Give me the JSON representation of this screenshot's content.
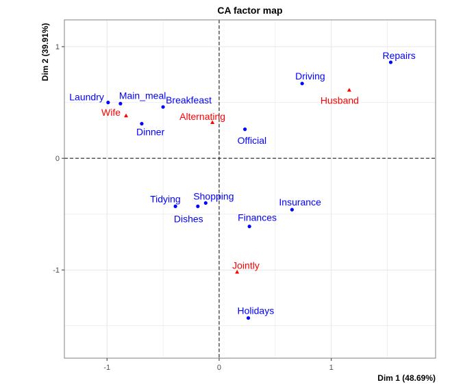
{
  "chart_data": {
    "type": "scatter",
    "title": "CA factor map",
    "xlabel": "Dim 1 (48.69%)",
    "ylabel": "Dim 2 (39.91%)",
    "xlim": [
      -1.38,
      1.93
    ],
    "ylim": [
      -1.79,
      1.24
    ],
    "x_ticks": [
      -1,
      0,
      1
    ],
    "y_ticks": [
      -1,
      0,
      1
    ],
    "x_tick_labels": [
      "-1",
      "0",
      "1"
    ],
    "y_tick_labels": [
      "-1",
      "0",
      "1"
    ],
    "grid": true,
    "legend": "none",
    "colors": {
      "rows": "#0000ff",
      "cols": "#ff0000",
      "grid": "#e6e6e6",
      "frame": "#808080"
    },
    "rows": [
      {
        "label": "Laundry",
        "x": -0.99,
        "y": 0.5
      },
      {
        "label": "Main_meal",
        "x": -0.88,
        "y": 0.49
      },
      {
        "label": "Dinner",
        "x": -0.69,
        "y": 0.31
      },
      {
        "label": "Breakfeast",
        "x": -0.5,
        "y": 0.46
      },
      {
        "label": "Tidying",
        "x": -0.39,
        "y": -0.43
      },
      {
        "label": "Dishes",
        "x": -0.19,
        "y": -0.43
      },
      {
        "label": "Shopping",
        "x": -0.12,
        "y": -0.4
      },
      {
        "label": "Official",
        "x": 0.23,
        "y": 0.26
      },
      {
        "label": "Driving",
        "x": 0.74,
        "y": 0.67
      },
      {
        "label": "Finances",
        "x": 0.27,
        "y": -0.61
      },
      {
        "label": "Insurance",
        "x": 0.65,
        "y": -0.46
      },
      {
        "label": "Repairs",
        "x": 1.53,
        "y": 0.86
      },
      {
        "label": "Holidays",
        "x": 0.26,
        "y": -1.43
      }
    ],
    "cols": [
      {
        "label": "Wife",
        "x": -0.83,
        "y": 0.38
      },
      {
        "label": "Alternating",
        "x": -0.06,
        "y": 0.32
      },
      {
        "label": "Jointly",
        "x": 0.16,
        "y": -1.02
      },
      {
        "label": "Husband",
        "x": 1.16,
        "y": 0.61
      }
    ]
  }
}
